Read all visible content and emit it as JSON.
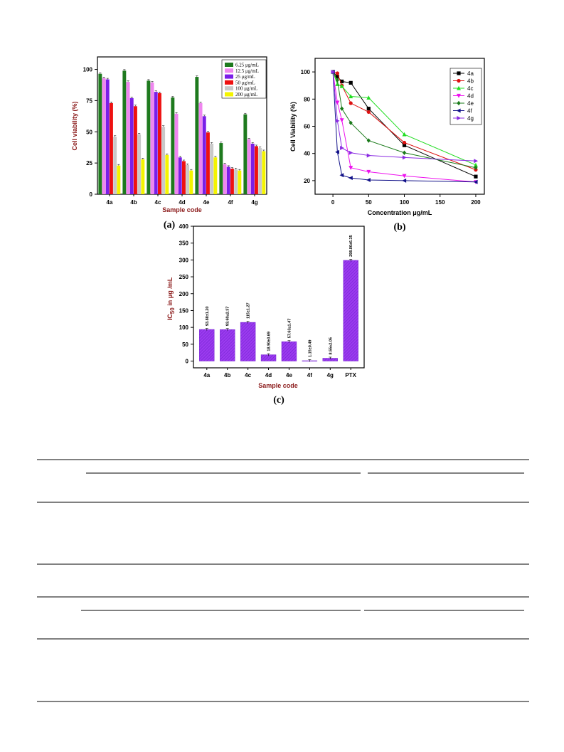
{
  "chart_data": [
    {
      "id": "a",
      "type": "bar",
      "panel_label": "(a)",
      "xlabel": "Sample code",
      "ylabel": "Cell viability (%)",
      "ylim": [
        0,
        110
      ],
      "yticks": [
        "0",
        "25",
        "50",
        "75",
        "100"
      ],
      "categories": [
        "4a",
        "4b",
        "4c",
        "4d",
        "4e",
        "4f",
        "4g"
      ],
      "legend_position": "top-right",
      "series": [
        {
          "name": "6.25 μg/mL",
          "color": "#1e7a1e",
          "values": [
            96.5,
            99,
            91,
            77.5,
            94,
            41,
            64
          ]
        },
        {
          "name": "12.5 μg/mL",
          "color": "#ef86ef",
          "values": [
            93,
            90,
            89.5,
            64.5,
            73,
            24,
            44
          ]
        },
        {
          "name": "25 μg/mL",
          "color": "#7a1fe8",
          "values": [
            92,
            77,
            82,
            29.5,
            62.5,
            22,
            40.5
          ]
        },
        {
          "name": "50 μg/mL",
          "color": "#ee1111",
          "values": [
            73,
            70.5,
            81,
            26.5,
            49.5,
            20.5,
            38.5
          ]
        },
        {
          "name": "100 μg/mL",
          "color": "#c9c9c9",
          "values": [
            46,
            48,
            54,
            23.5,
            40.5,
            20,
            37
          ]
        },
        {
          "name": "200 μg/mL",
          "color": "#f4f400",
          "values": [
            23,
            28,
            31.5,
            19,
            29.5,
            19,
            34.5
          ]
        }
      ]
    },
    {
      "id": "b",
      "type": "line",
      "panel_label": "(b)",
      "xlabel": "Concentration μg/mL",
      "ylabel": "Cell Viability (%)",
      "xlim": [
        -25,
        212
      ],
      "ylim": [
        10,
        110
      ],
      "xticks": [
        "0",
        "50",
        "100",
        "150",
        "200"
      ],
      "yticks": [
        "20",
        "40",
        "60",
        "80",
        "100"
      ],
      "legend_position": "top-right",
      "x": [
        0,
        6.25,
        12.5,
        25,
        50,
        100,
        200
      ],
      "series": [
        {
          "name": "4a",
          "color": "#000000",
          "marker": "square",
          "values": [
            100,
            96.5,
            93,
            92,
            73,
            46,
            23
          ]
        },
        {
          "name": "4b",
          "color": "#dd1111",
          "marker": "circle",
          "values": [
            100,
            99,
            90,
            77,
            70.5,
            48,
            28
          ]
        },
        {
          "name": "4c",
          "color": "#22dd22",
          "marker": "triangle-up",
          "values": [
            100,
            91,
            89.5,
            82,
            81,
            54,
            31.5
          ]
        },
        {
          "name": "4d",
          "color": "#ee11ee",
          "marker": "triangle-down",
          "values": [
            100,
            77.5,
            64.5,
            29.5,
            26.5,
            23.5,
            19
          ]
        },
        {
          "name": "4e",
          "color": "#1a7a1a",
          "marker": "diamond",
          "values": [
            100,
            94,
            73,
            62.5,
            49.5,
            40.5,
            29.5
          ]
        },
        {
          "name": "4f",
          "color": "#111188",
          "marker": "triangle-left",
          "values": [
            100,
            41,
            24,
            22,
            20.5,
            20,
            19
          ]
        },
        {
          "name": "4g",
          "color": "#8a2be2",
          "marker": "triangle-right",
          "values": [
            100,
            64,
            44,
            40.5,
            38.5,
            37,
            34.5
          ]
        }
      ]
    },
    {
      "id": "c",
      "type": "bar",
      "panel_label": "(c)",
      "xlabel": "Sample code",
      "ylabel_main": "IC",
      "ylabel_sub": "50",
      "ylabel_rest": " in μg /mL",
      "ylim": [
        -20,
        400
      ],
      "yticks": [
        "0",
        "50",
        "100",
        "150",
        "200",
        "250",
        "300",
        "350",
        "400"
      ],
      "bar_color": "#9b3bef",
      "categories": [
        "4a",
        "4b",
        "4c",
        "4d",
        "4e",
        "4f",
        "4g",
        "PTX"
      ],
      "values": [
        93.88,
        93.6,
        115,
        18.9,
        57.63,
        1.15,
        8.55,
        298.86
      ],
      "data_labels": [
        "93.88±1.20",
        "93.60±2.37",
        "115±1.27",
        "18.90±0.69",
        "57.63±1.47",
        "1.15±0.49",
        "8.55±2.05",
        "298.86±6.35"
      ]
    }
  ]
}
